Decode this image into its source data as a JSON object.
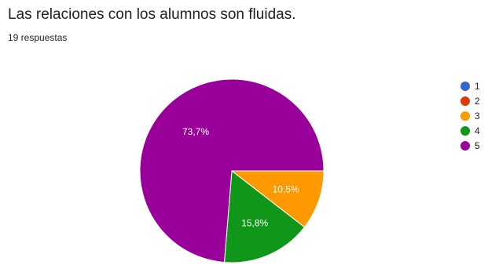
{
  "question": {
    "title": "Las relaciones con los alumnos son fluidas.",
    "responses": "19 respuestas"
  },
  "chart_data": {
    "type": "pie",
    "title": "Las relaciones con los alumnos son fluidas.",
    "subtitle": "19 respuestas",
    "legend_position": "right",
    "slices": [
      {
        "label": "1",
        "value": 0,
        "percent_label": "",
        "color": "#3366cc"
      },
      {
        "label": "2",
        "value": 0,
        "percent_label": "",
        "color": "#dc3912"
      },
      {
        "label": "3",
        "value": 10.5,
        "percent_label": "10,5%",
        "color": "#ff9900"
      },
      {
        "label": "4",
        "value": 15.8,
        "percent_label": "15,8%",
        "color": "#109618"
      },
      {
        "label": "5",
        "value": 73.7,
        "percent_label": "73,7%",
        "color": "#990099"
      }
    ]
  }
}
